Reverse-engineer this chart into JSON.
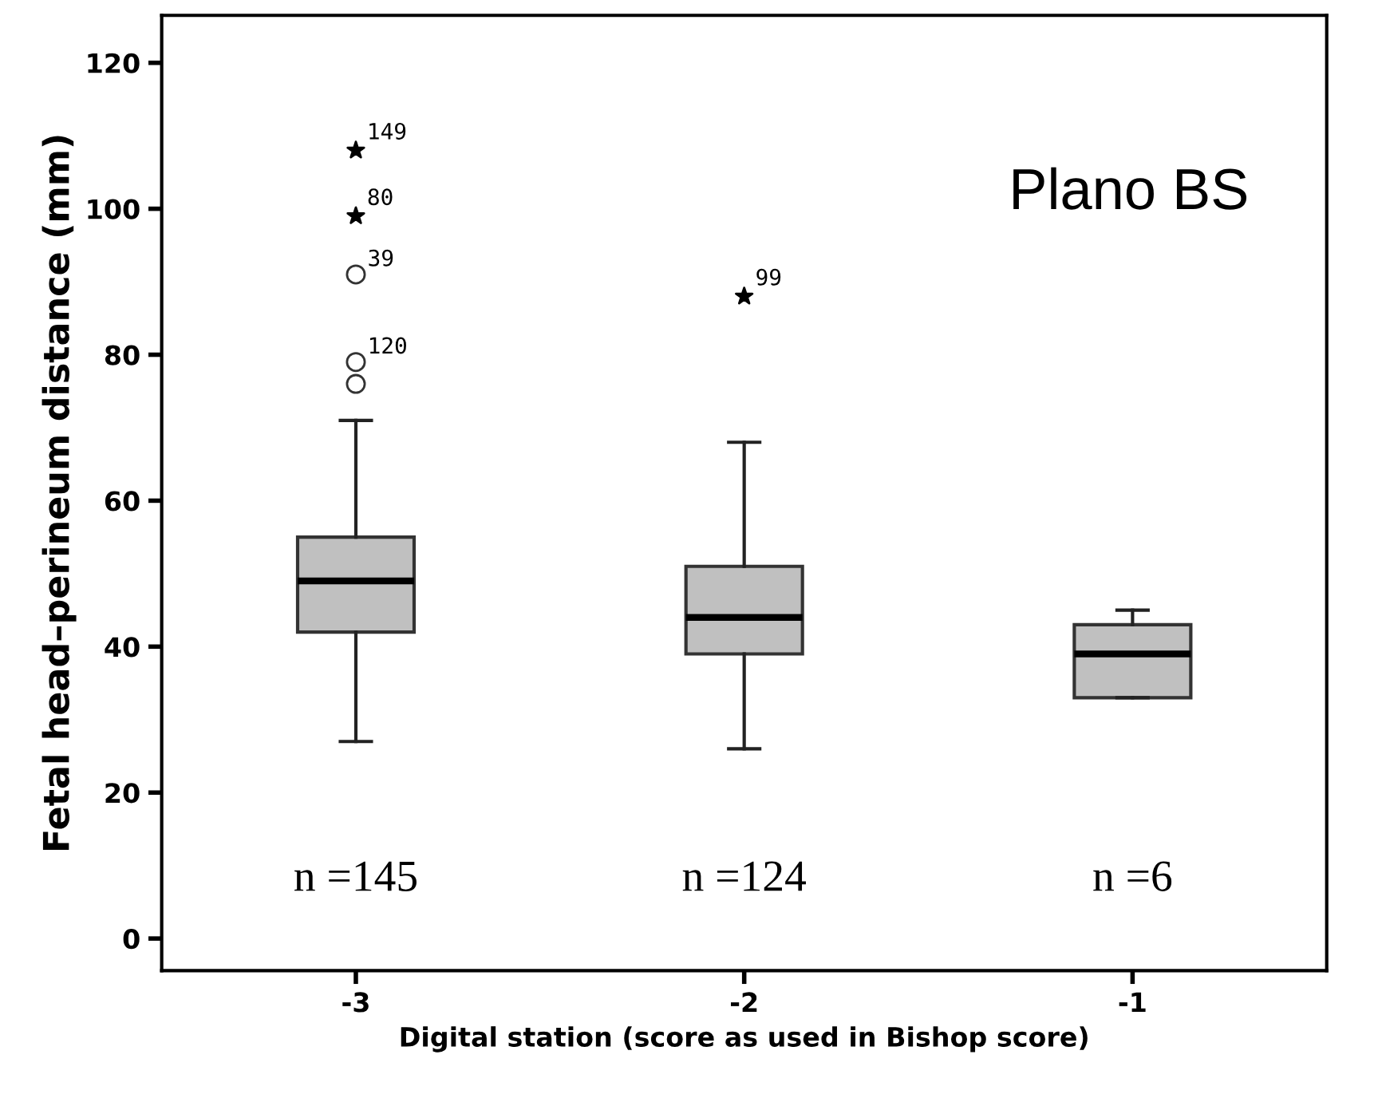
{
  "chart_data": {
    "type": "box",
    "xlabel": "Digital station (score as used in Bishop score)",
    "ylabel": "Fetal head–perineum distance (mm)",
    "categories": [
      "-3",
      "-2",
      "-1"
    ],
    "ylim": [
      -4.4,
      126.5
    ],
    "yticks": [
      0,
      20,
      40,
      60,
      80,
      100,
      120
    ],
    "grid": false,
    "series": [
      {
        "color": "#c0c0c0",
        "boxes": [
          {
            "low": 27,
            "q1": 42,
            "median": 49,
            "q3": 55,
            "high": 71,
            "outliers": [
              91,
              79,
              76
            ]
          },
          {
            "low": 26,
            "q1": 39,
            "median": 44,
            "q3": 51,
            "high": 68
          },
          {
            "low": 33,
            "q1": 33,
            "median": 39,
            "q3": 43,
            "high": 45
          }
        ]
      },
      {
        "type": "scatter",
        "marker": "star",
        "color": "#000000",
        "x": [
          "-3",
          "-3",
          "-2"
        ],
        "values": [
          108,
          99,
          88
        ]
      }
    ],
    "annotations": [
      {
        "text": "149",
        "x": "-3",
        "y": 108
      },
      {
        "text": "80",
        "x": "-3",
        "y": 99
      },
      {
        "text": "99",
        "x": "-2",
        "y": 88
      },
      "39",
      "120",
      "n =145",
      "n =124",
      "n =6",
      "Plano BS"
    ]
  }
}
